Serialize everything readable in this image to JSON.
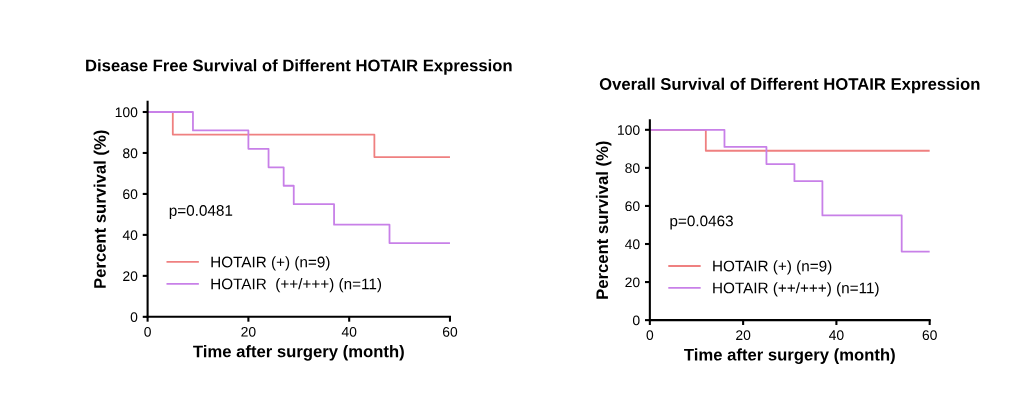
{
  "chart_data": [
    {
      "type": "step",
      "title": "Disease Free Survival of Different HOTAIR Expression",
      "xlabel": "Time after surgery (month)",
      "ylabel": "Percent survival (%)",
      "series": [
        {
          "name": "HOTAIR (+) (n=9)",
          "color": "#ef8080",
          "x": [
            0,
            5,
            45,
            60
          ],
          "values": [
            100,
            89,
            78,
            78
          ]
        },
        {
          "name": "HOTAIR  (++/+++) (n=11)",
          "color": "#c880e8",
          "x": [
            0,
            9,
            20,
            24,
            27,
            29,
            37,
            48,
            60
          ],
          "values": [
            100,
            91,
            82,
            73,
            64,
            55,
            45,
            36,
            36
          ]
        }
      ],
      "xlim": [
        0,
        60
      ],
      "xticks": [
        0,
        20,
        40,
        60
      ],
      "ylim": [
        0,
        105
      ],
      "yticks": [
        0,
        20,
        40,
        60,
        80,
        100
      ],
      "annotations": [
        "p=0.0481"
      ],
      "legend": "bottom left",
      "grid": false
    },
    {
      "type": "step",
      "title": "Overall Survival of Different HOTAIR Expression",
      "xlabel": "Time after surgery (month)",
      "ylabel": "Percent survival (%)",
      "series": [
        {
          "name": "HOTAIR (+) (n=9)",
          "color": "#ef8080",
          "x": [
            0,
            12,
            60
          ],
          "values": [
            100,
            89,
            89
          ]
        },
        {
          "name": "HOTAIR (++/+++) (n=11)",
          "color": "#c880e8",
          "x": [
            0,
            16,
            25,
            31,
            37,
            54,
            60
          ],
          "values": [
            100,
            91,
            82,
            73,
            55,
            36,
            36
          ]
        }
      ],
      "xlim": [
        0,
        60
      ],
      "xticks": [
        0,
        20,
        40,
        60
      ],
      "ylim": [
        0,
        105
      ],
      "yticks": [
        0,
        20,
        40,
        60,
        80,
        100
      ],
      "annotations": [
        "p=0.0463"
      ],
      "legend": "bottom left",
      "grid": false
    }
  ]
}
